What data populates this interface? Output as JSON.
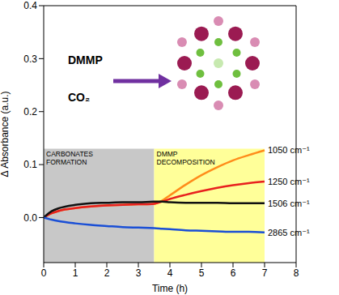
{
  "chart_data": {
    "type": "line",
    "x_label": "Time (h)",
    "y_label": "Δ Absorbance (a.u.)",
    "xlim": [
      0,
      8
    ],
    "xticks": [
      0,
      1,
      2,
      3,
      4,
      5,
      6,
      7,
      8
    ],
    "ylim": [
      -0.085,
      0.4
    ],
    "yticks": [
      {
        "value": 0,
        "label": "0.0"
      },
      0.1,
      0.2,
      0.3,
      0.4
    ],
    "grid": false,
    "x": [
      0,
      0.25,
      0.5,
      1,
      1.5,
      2,
      2.5,
      3,
      3.5,
      3.75,
      4,
      4.5,
      5,
      5.5,
      6,
      6.5,
      7
    ],
    "series": [
      {
        "name": "1050 cm⁻¹",
        "color": "#ff8c1a",
        "values": [
          0,
          0.008,
          0.013,
          0.018,
          0.021,
          0.023,
          0.024,
          0.025,
          0.026,
          0.032,
          0.042,
          0.062,
          0.08,
          0.095,
          0.108,
          0.118,
          0.127
        ]
      },
      {
        "name": "1250 cm⁻¹",
        "color": "#e8201e",
        "values": [
          0,
          0.008,
          0.013,
          0.018,
          0.021,
          0.023,
          0.024,
          0.025,
          0.026,
          0.03,
          0.035,
          0.043,
          0.05,
          0.056,
          0.061,
          0.065,
          0.068
        ]
      },
      {
        "name": "1506 cm⁻¹",
        "color": "#111111",
        "values": [
          0,
          0.012,
          0.018,
          0.024,
          0.027,
          0.028,
          0.029,
          0.029,
          0.03,
          0.03,
          0.029,
          0.028,
          0.028,
          0.028,
          0.027,
          0.027,
          0.027
        ]
      },
      {
        "name": "2865 cm⁻¹",
        "color": "#1a4fd6",
        "values": [
          0,
          -0.004,
          -0.007,
          -0.011,
          -0.014,
          -0.016,
          -0.018,
          -0.019,
          -0.02,
          -0.021,
          -0.022,
          -0.024,
          -0.025,
          -0.026,
          -0.027,
          -0.027,
          -0.028
        ]
      }
    ],
    "regions": [
      {
        "label": "CARBONATES FORMATION",
        "x": [
          0,
          3.5
        ],
        "y": [
          -0.085,
          0.13
        ],
        "color": "#c8c8c8"
      },
      {
        "label": "DMMP DECOMPOSITION",
        "x": [
          3.5,
          7
        ],
        "y": [
          -0.085,
          0.13
        ],
        "color": "#ffff99"
      }
    ],
    "annotations": [
      "DMMP",
      "CO₂"
    ]
  }
}
